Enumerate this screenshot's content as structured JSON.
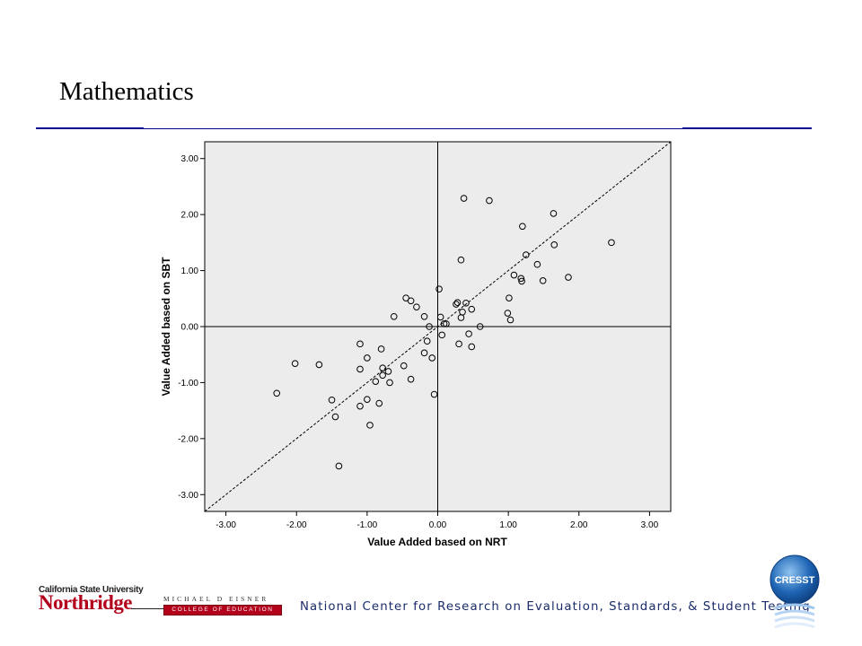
{
  "slide": {
    "title": "Mathematics"
  },
  "chart_data": {
    "type": "scatter",
    "xlabel": "Value Added based on NRT",
    "ylabel": "Value Added based on SBT",
    "xlim": [
      -3.3,
      3.3
    ],
    "ylim": [
      -3.3,
      3.3
    ],
    "xticks": [
      "-3.00",
      "-2.00",
      "-1.00",
      "0.00",
      "1.00",
      "2.00",
      "3.00"
    ],
    "yticks": [
      "3.00",
      "2.00",
      "1.00",
      "0.00",
      "-1.00",
      "-2.00",
      "-3.00"
    ],
    "reference_lines": [
      "x = 0",
      "y = 0",
      "y = x (dashed)"
    ],
    "background": "#ececec",
    "grid": false,
    "points": [
      [
        -2.28,
        -1.19
      ],
      [
        -2.02,
        -0.66
      ],
      [
        -1.68,
        -0.68
      ],
      [
        -1.5,
        -1.31
      ],
      [
        -1.45,
        -1.61
      ],
      [
        -1.4,
        -2.49
      ],
      [
        -1.1,
        -0.31
      ],
      [
        -1.1,
        -0.76
      ],
      [
        -1.1,
        -1.42
      ],
      [
        -1.0,
        -0.56
      ],
      [
        -1.0,
        -1.3
      ],
      [
        -0.96,
        -1.76
      ],
      [
        -0.88,
        -0.98
      ],
      [
        -0.83,
        -1.37
      ],
      [
        -0.8,
        -0.4
      ],
      [
        -0.78,
        -0.74
      ],
      [
        -0.78,
        -0.87
      ],
      [
        -0.7,
        -0.8
      ],
      [
        -0.68,
        -1.0
      ],
      [
        -0.62,
        0.18
      ],
      [
        -0.48,
        -0.7
      ],
      [
        -0.45,
        0.51
      ],
      [
        -0.38,
        0.46
      ],
      [
        -0.38,
        -0.94
      ],
      [
        -0.3,
        0.35
      ],
      [
        -0.19,
        0.18
      ],
      [
        -0.19,
        -0.47
      ],
      [
        -0.15,
        -0.26
      ],
      [
        -0.12,
        0.0
      ],
      [
        -0.08,
        -0.56
      ],
      [
        -0.05,
        -1.21
      ],
      [
        0.02,
        0.67
      ],
      [
        0.04,
        0.17
      ],
      [
        0.06,
        -0.15
      ],
      [
        0.09,
        0.05
      ],
      [
        0.12,
        0.05
      ],
      [
        0.26,
        0.4
      ],
      [
        0.28,
        0.43
      ],
      [
        0.3,
        -0.31
      ],
      [
        0.33,
        1.19
      ],
      [
        0.33,
        0.16
      ],
      [
        0.35,
        0.26
      ],
      [
        0.37,
        2.29
      ],
      [
        0.4,
        0.42
      ],
      [
        0.44,
        -0.13
      ],
      [
        0.48,
        0.31
      ],
      [
        0.48,
        -0.36
      ],
      [
        0.6,
        0.0
      ],
      [
        0.73,
        2.25
      ],
      [
        0.99,
        0.24
      ],
      [
        1.01,
        0.51
      ],
      [
        1.03,
        0.12
      ],
      [
        1.08,
        0.92
      ],
      [
        1.18,
        0.86
      ],
      [
        1.19,
        0.81
      ],
      [
        1.2,
        1.79
      ],
      [
        1.25,
        1.28
      ],
      [
        1.41,
        1.11
      ],
      [
        1.49,
        0.82
      ],
      [
        1.64,
        2.02
      ],
      [
        1.65,
        1.46
      ],
      [
        1.85,
        0.88
      ],
      [
        2.46,
        1.5
      ]
    ]
  },
  "footer": {
    "csun_line1": "California State University",
    "csun_line2": "Northridge",
    "eisner_line1": "MICHAEL D EISNER",
    "eisner_line2": "COLLEGE OF EDUCATION",
    "center_name": "National Center for Research on Evaluation, Standards, & Student Testing",
    "cresst_logo": "CRESST"
  },
  "colors": {
    "title_rule": "#00008b",
    "csun_red": "#b3001b",
    "nc_text": "#1b2c6b",
    "cresst_blue": "#1e64b4"
  }
}
